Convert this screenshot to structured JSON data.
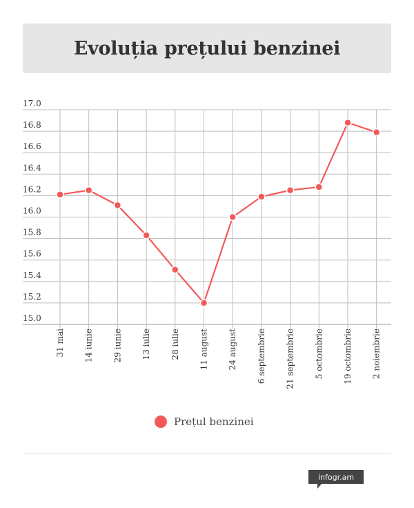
{
  "header": {
    "title": "Evoluția prețului benzinei"
  },
  "chart_data": {
    "type": "line",
    "title": "Evoluția prețului benzinei",
    "xlabel": "",
    "ylabel": "",
    "categories": [
      "31 mai",
      "14 iunie",
      "29 iunie",
      "13 iulie",
      "28 iulie",
      "11 august",
      "24 august",
      "6 septembrie",
      "21 septembrie",
      "5 octombrie",
      "19 octombrie",
      "2 noiembrie"
    ],
    "y_ticks": [
      "15.0",
      "15.2",
      "15.4",
      "15.6",
      "15.8",
      "16.0",
      "16.2",
      "16.4",
      "16.6",
      "16.8",
      "17.0"
    ],
    "ylim": [
      15.0,
      17.0
    ],
    "grid": true,
    "legend_position": "bottom",
    "series": [
      {
        "name": "Prețul benzinei",
        "color": "#f25a5a",
        "values": [
          16.21,
          16.25,
          16.11,
          15.83,
          15.51,
          15.2,
          16.0,
          16.19,
          16.25,
          16.28,
          16.88,
          16.79
        ]
      }
    ]
  },
  "footer": {
    "brand": "infogr.am"
  }
}
